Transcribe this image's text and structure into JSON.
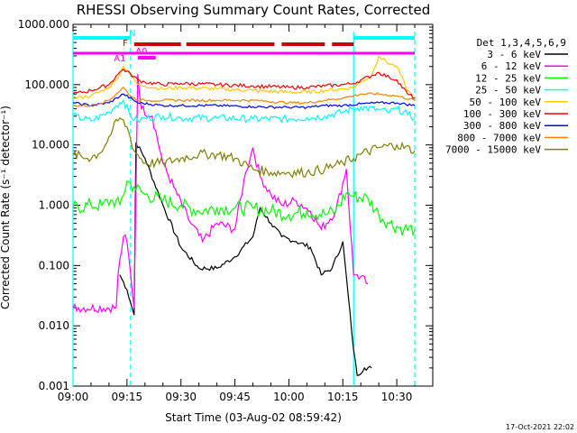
{
  "chart_data": {
    "type": "line",
    "title": "RHESSI Observing Summary Count Rates, Corrected",
    "xlabel": "Start Time (03-Aug-02 08:59:42)",
    "ylabel": "Corrected Count Rate (s⁻¹ detector⁻¹)",
    "y_scale": "log",
    "ylim": [
      0.001,
      1000
    ],
    "xlim": [
      "09:00",
      "10:40"
    ],
    "x_ticks": [
      "09:00",
      "09:15",
      "09:30",
      "09:45",
      "10:00",
      "10:15",
      "10:30"
    ],
    "y_ticks": [
      "0.001",
      "0.010",
      "0.100",
      "1.000",
      "10.000",
      "100.000",
      "1000.000"
    ],
    "legend_title": "Det 1,3,4,5,6,9",
    "legend_position": "right",
    "footer_date": "17-Oct-2021 22:02",
    "series": [
      {
        "name": "3 - 6 keV",
        "color": "#000000",
        "x": [
          "09:13",
          "09:15",
          "09:17",
          "09:17.5",
          "09:20",
          "09:25",
          "09:30",
          "09:35",
          "09:40",
          "09:45",
          "09:50",
          "09:52",
          "09:55",
          "09:58",
          "10:02",
          "10:06",
          "10:09",
          "10:12",
          "10:15",
          "10:18",
          "10:19",
          "10:21",
          "10:23"
        ],
        "y": [
          0.07,
          0.04,
          0.015,
          11,
          6,
          1.0,
          0.2,
          0.09,
          0.09,
          0.14,
          0.3,
          0.9,
          0.5,
          0.3,
          0.25,
          0.2,
          0.07,
          0.09,
          0.25,
          0.004,
          0.0015,
          0.002,
          0.002
        ]
      },
      {
        "name": "6 - 12 keV",
        "color": "#ff00ff",
        "x": [
          "09:00",
          "09:12",
          "09:12.5",
          "09:14",
          "09:15",
          "09:17",
          "09:18",
          "09:19",
          "09:22",
          "09:25",
          "09:28",
          "09:32",
          "09:36",
          "09:40",
          "09:45",
          "09:48",
          "09:50",
          "09:52",
          "09:55",
          "09:58",
          "10:02",
          "10:06",
          "10:09",
          "10:13",
          "10:16",
          "10:18",
          "10:19",
          "10:22"
        ],
        "y": [
          0.02,
          0.02,
          0.07,
          0.3,
          0.25,
          0.02,
          150,
          40,
          30,
          5,
          2.0,
          0.6,
          0.25,
          0.5,
          0.4,
          3.5,
          9.0,
          3.0,
          1.5,
          1.0,
          1.2,
          0.8,
          0.4,
          0.8,
          4.0,
          0.07,
          0.07,
          0.05
        ]
      },
      {
        "name": "12 - 25 keV",
        "color": "#00ff00",
        "x": [
          "09:00",
          "09:05",
          "09:08",
          "09:11",
          "09:13",
          "09:15",
          "09:17",
          "09:20",
          "09:25",
          "09:30",
          "09:35",
          "09:40",
          "09:45",
          "09:50",
          "09:55",
          "10:00",
          "10:05",
          "10:10",
          "10:13",
          "10:16",
          "10:18",
          "10:22",
          "10:25",
          "10:28",
          "10:32",
          "10:35"
        ],
        "y": [
          0.9,
          1.0,
          1.0,
          1.2,
          1.0,
          2.5,
          2.0,
          1.5,
          1.2,
          1.0,
          0.8,
          0.9,
          0.9,
          0.9,
          0.8,
          0.7,
          0.8,
          0.7,
          0.8,
          1.6,
          1.4,
          1.3,
          0.7,
          0.5,
          0.4,
          0.4
        ]
      },
      {
        "name": "25 - 50 keV",
        "color": "#00ffff",
        "x": [
          "09:00",
          "09:05",
          "09:10",
          "09:12",
          "09:14",
          "09:16",
          "09:18",
          "09:20",
          "09:25",
          "09:30",
          "09:40",
          "09:50",
          "10:00",
          "10:05",
          "10:10",
          "10:15",
          "10:18",
          "10:20",
          "10:25",
          "10:28",
          "10:30",
          "10:33",
          "10:35"
        ],
        "y": [
          30,
          25,
          35,
          45,
          55,
          30,
          25,
          28,
          30,
          28,
          28,
          27,
          27,
          28,
          30,
          35,
          40,
          42,
          38,
          35,
          40,
          32,
          28
        ]
      },
      {
        "name": "50 - 100 keV",
        "color": "#ffc800",
        "x": [
          "09:00",
          "09:05",
          "09:10",
          "09:12",
          "09:14",
          "09:16",
          "09:18",
          "09:20",
          "09:25",
          "09:30",
          "09:40",
          "09:50",
          "10:00",
          "10:05",
          "10:10",
          "10:15",
          "10:18",
          "10:20",
          "10:23",
          "10:25",
          "10:28",
          "10:30",
          "10:33",
          "10:35"
        ],
        "y": [
          60,
          65,
          90,
          120,
          200,
          150,
          100,
          95,
          85,
          90,
          85,
          80,
          75,
          75,
          80,
          85,
          90,
          110,
          140,
          300,
          220,
          200,
          80,
          60
        ]
      },
      {
        "name": "100 - 300 keV",
        "color": "#ff0000",
        "x": [
          "09:00",
          "09:05",
          "09:10",
          "09:12",
          "09:14",
          "09:16",
          "09:18",
          "09:20",
          "09:25",
          "09:30",
          "09:40",
          "09:50",
          "10:00",
          "10:05",
          "10:10",
          "10:15",
          "10:18",
          "10:20",
          "10:23",
          "10:25",
          "10:28",
          "10:30",
          "10:33",
          "10:35"
        ],
        "y": [
          70,
          80,
          100,
          140,
          180,
          150,
          120,
          110,
          100,
          105,
          100,
          95,
          90,
          90,
          95,
          100,
          105,
          120,
          140,
          160,
          130,
          120,
          70,
          60
        ]
      },
      {
        "name": "300 - 800 keV",
        "color": "#0000ff",
        "x": [
          "09:00",
          "09:05",
          "09:10",
          "09:14",
          "09:18",
          "09:25",
          "09:30",
          "09:40",
          "09:50",
          "10:00",
          "10:05",
          "10:10",
          "10:15",
          "10:20",
          "10:25",
          "10:30",
          "10:35"
        ],
        "y": [
          50,
          45,
          50,
          70,
          50,
          45,
          45,
          45,
          43,
          42,
          42,
          45,
          45,
          48,
          50,
          50,
          45
        ]
      },
      {
        "name": "800 - 7000 keV",
        "color": "#ff8000",
        "x": [
          "09:00",
          "09:05",
          "09:10",
          "09:12",
          "09:14",
          "09:16",
          "09:18",
          "09:20",
          "09:25",
          "09:30",
          "09:40",
          "09:50",
          "10:00",
          "10:05",
          "10:10",
          "10:15",
          "10:18",
          "10:20",
          "10:25",
          "10:30",
          "10:35"
        ],
        "y": [
          45,
          45,
          55,
          70,
          90,
          65,
          55,
          55,
          55,
          55,
          55,
          55,
          50,
          50,
          55,
          60,
          65,
          70,
          70,
          65,
          55
        ]
      },
      {
        "name": "7000 - 15000 keV",
        "color": "#808000",
        "x": [
          "09:00",
          "09:04",
          "09:07",
          "09:09",
          "09:11",
          "09:13",
          "09:15",
          "09:17",
          "09:20",
          "09:25",
          "09:30",
          "09:35",
          "09:40",
          "09:45",
          "09:50",
          "09:55",
          "10:00",
          "10:05",
          "10:10",
          "10:15",
          "10:20",
          "10:25",
          "10:30",
          "10:35"
        ],
        "y": [
          7,
          6,
          7,
          10,
          18,
          28,
          20,
          8,
          5,
          5,
          6,
          7,
          7,
          6,
          4,
          3.5,
          3.5,
          3.5,
          4,
          5,
          7,
          9,
          10,
          8
        ]
      }
    ],
    "flags": [
      {
        "label": "N",
        "color": "#00ffff",
        "x_ranges": [
          [
            "09:00",
            "09:16"
          ],
          [
            "10:18",
            "10:35"
          ]
        ]
      },
      {
        "label": "F",
        "color": "#cc0000",
        "x_ranges": [
          [
            "09:17",
            "09:30"
          ],
          [
            "09:31.5",
            "09:56"
          ],
          [
            "09:58",
            "10:10"
          ],
          [
            "10:12",
            "10:18"
          ]
        ]
      },
      {
        "label": "A0",
        "color": "#ff00ff",
        "x_ranges": [
          [
            "09:18",
            "09:23"
          ]
        ]
      },
      {
        "label": "",
        "color": "#ff00ff",
        "x_ranges": [
          [
            "09:00",
            "10:35"
          ]
        ]
      },
      {
        "label": "A1",
        "color": "#ff00ff",
        "x_ranges": []
      }
    ],
    "vlines": {
      "solid": [
        "09:00",
        "10:18"
      ],
      "dashed": [
        "09:16",
        "10:35"
      ],
      "color": "#00ffff"
    }
  }
}
